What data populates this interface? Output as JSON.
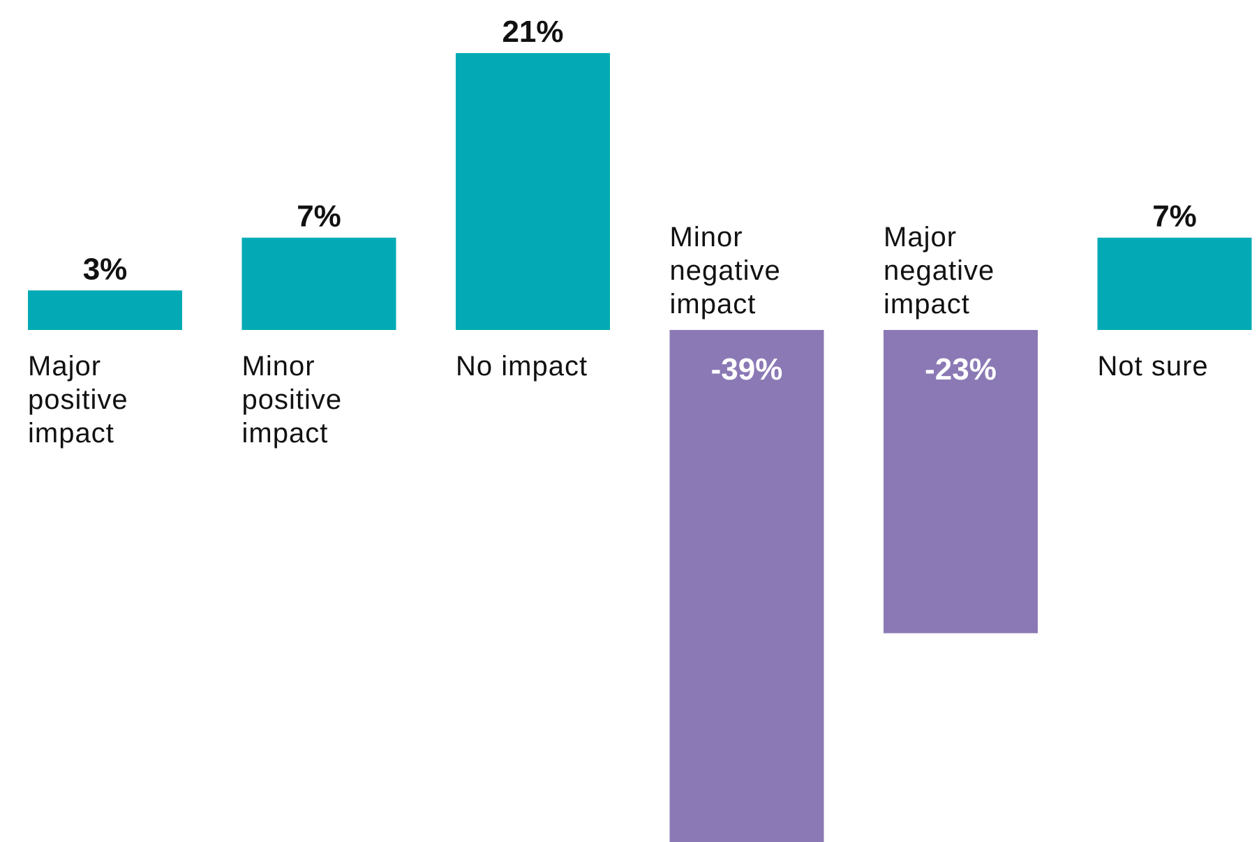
{
  "chart_data": {
    "type": "bar",
    "categories": [
      "Major positive impact",
      "Minor positive impact",
      "No impact",
      "Minor negative impact",
      "Major negative impact",
      "Not sure"
    ],
    "category_lines": [
      [
        "Major",
        "positive",
        "impact"
      ],
      [
        "Minor",
        "positive",
        "impact"
      ],
      [
        "No impact"
      ],
      [
        "Minor",
        "negative",
        "impact"
      ],
      [
        "Major",
        "negative",
        "impact"
      ],
      [
        "Not sure"
      ]
    ],
    "values": [
      3,
      7,
      21,
      -39,
      -23,
      7
    ],
    "value_labels": [
      "3%",
      "7%",
      "21%",
      "-39%",
      "-23%",
      "7%"
    ],
    "title": "",
    "xlabel": "",
    "ylabel": "",
    "ylim": [
      -39,
      23
    ],
    "grid": false,
    "legend": "none",
    "colors": {
      "positive": "#03aab5",
      "negative": "#8b79b5",
      "label_positive": "#111111",
      "label_negative": "#ffffff"
    }
  }
}
